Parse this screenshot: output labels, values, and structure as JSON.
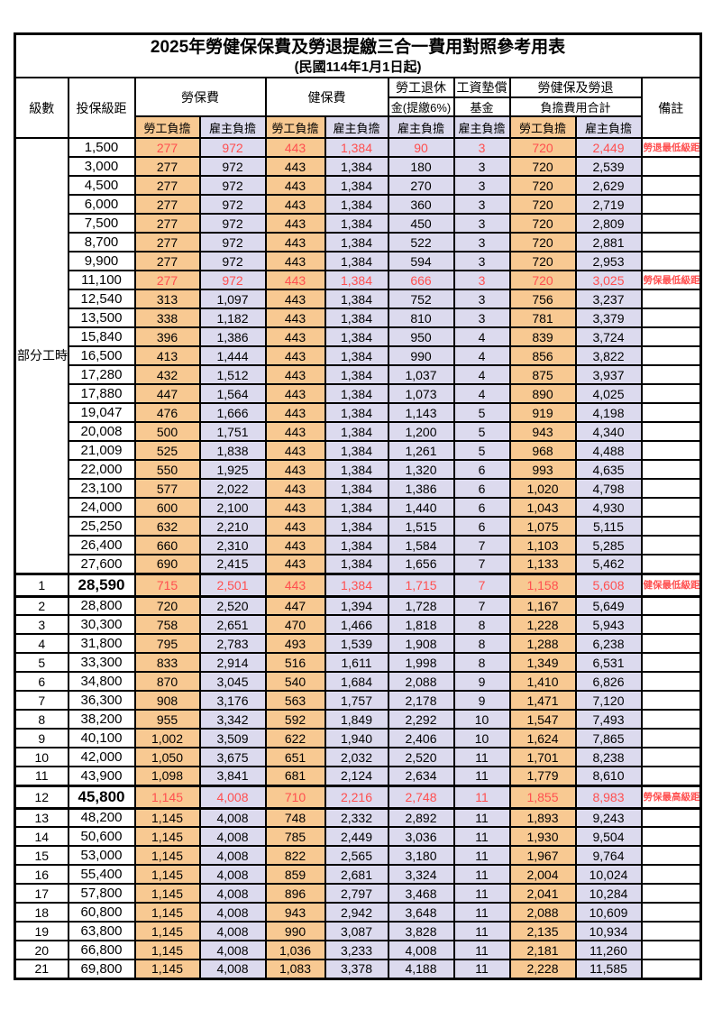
{
  "title": "2025年勞健保保費及勞退提繳三合一費用對照參考用表",
  "subtitle": "(民國114年1月1日起)",
  "colors": {
    "employee_bg": "#F8C992",
    "employer_bg": "#DCDAEE",
    "highlight_red": "#FF4F4F"
  },
  "header": {
    "level": "級數",
    "bracket": "投保級距",
    "labor_fee": "勞保費",
    "health_fee": "健保費",
    "pension_line1": "勞工退休",
    "pension_line2": "金(提繳6%)",
    "wage_fund_line1": "工資墊償",
    "wage_fund_line2": "基金",
    "total_line1": "勞健保及勞退",
    "total_line2": "負擔費用合計",
    "remark": "備註",
    "employee_share": "勞工負擔",
    "employer_share": "雇主負擔"
  },
  "part_time": {
    "label": "部分工時",
    "span": 23
  },
  "rows": [
    {
      "level": null,
      "bracket": "1,500",
      "values": [
        "277",
        "972",
        "443",
        "1,384",
        "90",
        "3",
        "720",
        "2,449"
      ],
      "note": "勞退最低級距",
      "red": true,
      "thick": false
    },
    {
      "level": null,
      "bracket": "3,000",
      "values": [
        "277",
        "972",
        "443",
        "1,384",
        "180",
        "3",
        "720",
        "2,539"
      ],
      "note": "",
      "red": false,
      "thick": false
    },
    {
      "level": null,
      "bracket": "4,500",
      "values": [
        "277",
        "972",
        "443",
        "1,384",
        "270",
        "3",
        "720",
        "2,629"
      ],
      "note": "",
      "red": false,
      "thick": false
    },
    {
      "level": null,
      "bracket": "6,000",
      "values": [
        "277",
        "972",
        "443",
        "1,384",
        "360",
        "3",
        "720",
        "2,719"
      ],
      "note": "",
      "red": false,
      "thick": false
    },
    {
      "level": null,
      "bracket": "7,500",
      "values": [
        "277",
        "972",
        "443",
        "1,384",
        "450",
        "3",
        "720",
        "2,809"
      ],
      "note": "",
      "red": false,
      "thick": false
    },
    {
      "level": null,
      "bracket": "8,700",
      "values": [
        "277",
        "972",
        "443",
        "1,384",
        "522",
        "3",
        "720",
        "2,881"
      ],
      "note": "",
      "red": false,
      "thick": false
    },
    {
      "level": null,
      "bracket": "9,900",
      "values": [
        "277",
        "972",
        "443",
        "1,384",
        "594",
        "3",
        "720",
        "2,953"
      ],
      "note": "",
      "red": false,
      "thick": false
    },
    {
      "level": null,
      "bracket": "11,100",
      "values": [
        "277",
        "972",
        "443",
        "1,384",
        "666",
        "3",
        "720",
        "3,025"
      ],
      "note": "勞保最低級距",
      "red": true,
      "thick": false
    },
    {
      "level": null,
      "bracket": "12,540",
      "values": [
        "313",
        "1,097",
        "443",
        "1,384",
        "752",
        "3",
        "756",
        "3,237"
      ],
      "note": "",
      "red": false,
      "thick": false
    },
    {
      "level": null,
      "bracket": "13,500",
      "values": [
        "338",
        "1,182",
        "443",
        "1,384",
        "810",
        "3",
        "781",
        "3,379"
      ],
      "note": "",
      "red": false,
      "thick": false
    },
    {
      "level": null,
      "bracket": "15,840",
      "values": [
        "396",
        "1,386",
        "443",
        "1,384",
        "950",
        "4",
        "839",
        "3,724"
      ],
      "note": "",
      "red": false,
      "thick": false
    },
    {
      "level": null,
      "bracket": "16,500",
      "values": [
        "413",
        "1,444",
        "443",
        "1,384",
        "990",
        "4",
        "856",
        "3,822"
      ],
      "note": "",
      "red": false,
      "thick": false
    },
    {
      "level": null,
      "bracket": "17,280",
      "values": [
        "432",
        "1,512",
        "443",
        "1,384",
        "1,037",
        "4",
        "875",
        "3,937"
      ],
      "note": "",
      "red": false,
      "thick": false
    },
    {
      "level": null,
      "bracket": "17,880",
      "values": [
        "447",
        "1,564",
        "443",
        "1,384",
        "1,073",
        "4",
        "890",
        "4,025"
      ],
      "note": "",
      "red": false,
      "thick": false
    },
    {
      "level": null,
      "bracket": "19,047",
      "values": [
        "476",
        "1,666",
        "443",
        "1,384",
        "1,143",
        "5",
        "919",
        "4,198"
      ],
      "note": "",
      "red": false,
      "thick": false
    },
    {
      "level": null,
      "bracket": "20,008",
      "values": [
        "500",
        "1,751",
        "443",
        "1,384",
        "1,200",
        "5",
        "943",
        "4,340"
      ],
      "note": "",
      "red": false,
      "thick": false
    },
    {
      "level": null,
      "bracket": "21,009",
      "values": [
        "525",
        "1,838",
        "443",
        "1,384",
        "1,261",
        "5",
        "968",
        "4,488"
      ],
      "note": "",
      "red": false,
      "thick": false
    },
    {
      "level": null,
      "bracket": "22,000",
      "values": [
        "550",
        "1,925",
        "443",
        "1,384",
        "1,320",
        "6",
        "993",
        "4,635"
      ],
      "note": "",
      "red": false,
      "thick": false
    },
    {
      "level": null,
      "bracket": "23,100",
      "values": [
        "577",
        "2,022",
        "443",
        "1,384",
        "1,386",
        "6",
        "1,020",
        "4,798"
      ],
      "note": "",
      "red": false,
      "thick": false
    },
    {
      "level": null,
      "bracket": "24,000",
      "values": [
        "600",
        "2,100",
        "443",
        "1,384",
        "1,440",
        "6",
        "1,043",
        "4,930"
      ],
      "note": "",
      "red": false,
      "thick": false
    },
    {
      "level": null,
      "bracket": "25,250",
      "values": [
        "632",
        "2,210",
        "443",
        "1,384",
        "1,515",
        "6",
        "1,075",
        "5,115"
      ],
      "note": "",
      "red": false,
      "thick": false
    },
    {
      "level": null,
      "bracket": "26,400",
      "values": [
        "660",
        "2,310",
        "443",
        "1,384",
        "1,584",
        "7",
        "1,103",
        "5,285"
      ],
      "note": "",
      "red": false,
      "thick": false
    },
    {
      "level": null,
      "bracket": "27,600",
      "values": [
        "690",
        "2,415",
        "443",
        "1,384",
        "1,656",
        "7",
        "1,133",
        "5,462"
      ],
      "note": "",
      "red": false,
      "thick": false
    },
    {
      "level": "1",
      "bracket": "28,590",
      "values": [
        "715",
        "2,501",
        "443",
        "1,384",
        "1,715",
        "7",
        "1,158",
        "5,608"
      ],
      "note": "健保最低級距",
      "red": true,
      "thick": true
    },
    {
      "level": "2",
      "bracket": "28,800",
      "values": [
        "720",
        "2,520",
        "447",
        "1,394",
        "1,728",
        "7",
        "1,167",
        "5,649"
      ],
      "note": "",
      "red": false,
      "thick": false
    },
    {
      "level": "3",
      "bracket": "30,300",
      "values": [
        "758",
        "2,651",
        "470",
        "1,466",
        "1,818",
        "8",
        "1,228",
        "5,943"
      ],
      "note": "",
      "red": false,
      "thick": false
    },
    {
      "level": "4",
      "bracket": "31,800",
      "values": [
        "795",
        "2,783",
        "493",
        "1,539",
        "1,908",
        "8",
        "1,288",
        "6,238"
      ],
      "note": "",
      "red": false,
      "thick": false
    },
    {
      "level": "5",
      "bracket": "33,300",
      "values": [
        "833",
        "2,914",
        "516",
        "1,611",
        "1,998",
        "8",
        "1,349",
        "6,531"
      ],
      "note": "",
      "red": false,
      "thick": false
    },
    {
      "level": "6",
      "bracket": "34,800",
      "values": [
        "870",
        "3,045",
        "540",
        "1,684",
        "2,088",
        "9",
        "1,410",
        "6,826"
      ],
      "note": "",
      "red": false,
      "thick": false
    },
    {
      "level": "7",
      "bracket": "36,300",
      "values": [
        "908",
        "3,176",
        "563",
        "1,757",
        "2,178",
        "9",
        "1,471",
        "7,120"
      ],
      "note": "",
      "red": false,
      "thick": false
    },
    {
      "level": "8",
      "bracket": "38,200",
      "values": [
        "955",
        "3,342",
        "592",
        "1,849",
        "2,292",
        "10",
        "1,547",
        "7,493"
      ],
      "note": "",
      "red": false,
      "thick": false
    },
    {
      "level": "9",
      "bracket": "40,100",
      "values": [
        "1,002",
        "3,509",
        "622",
        "1,940",
        "2,406",
        "10",
        "1,624",
        "7,865"
      ],
      "note": "",
      "red": false,
      "thick": false
    },
    {
      "level": "10",
      "bracket": "42,000",
      "values": [
        "1,050",
        "3,675",
        "651",
        "2,032",
        "2,520",
        "11",
        "1,701",
        "8,238"
      ],
      "note": "",
      "red": false,
      "thick": false
    },
    {
      "level": "11",
      "bracket": "43,900",
      "values": [
        "1,098",
        "3,841",
        "681",
        "2,124",
        "2,634",
        "11",
        "1,779",
        "8,610"
      ],
      "note": "",
      "red": false,
      "thick": false
    },
    {
      "level": "12",
      "bracket": "45,800",
      "values": [
        "1,145",
        "4,008",
        "710",
        "2,216",
        "2,748",
        "11",
        "1,855",
        "8,983"
      ],
      "note": "勞保最高級距",
      "red": true,
      "thick": true
    },
    {
      "level": "13",
      "bracket": "48,200",
      "values": [
        "1,145",
        "4,008",
        "748",
        "2,332",
        "2,892",
        "11",
        "1,893",
        "9,243"
      ],
      "note": "",
      "red": false,
      "thick": false
    },
    {
      "level": "14",
      "bracket": "50,600",
      "values": [
        "1,145",
        "4,008",
        "785",
        "2,449",
        "3,036",
        "11",
        "1,930",
        "9,504"
      ],
      "note": "",
      "red": false,
      "thick": false
    },
    {
      "level": "15",
      "bracket": "53,000",
      "values": [
        "1,145",
        "4,008",
        "822",
        "2,565",
        "3,180",
        "11",
        "1,967",
        "9,764"
      ],
      "note": "",
      "red": false,
      "thick": false
    },
    {
      "level": "16",
      "bracket": "55,400",
      "values": [
        "1,145",
        "4,008",
        "859",
        "2,681",
        "3,324",
        "11",
        "2,004",
        "10,024"
      ],
      "note": "",
      "red": false,
      "thick": false
    },
    {
      "level": "17",
      "bracket": "57,800",
      "values": [
        "1,145",
        "4,008",
        "896",
        "2,797",
        "3,468",
        "11",
        "2,041",
        "10,284"
      ],
      "note": "",
      "red": false,
      "thick": false
    },
    {
      "level": "18",
      "bracket": "60,800",
      "values": [
        "1,145",
        "4,008",
        "943",
        "2,942",
        "3,648",
        "11",
        "2,088",
        "10,609"
      ],
      "note": "",
      "red": false,
      "thick": false
    },
    {
      "level": "19",
      "bracket": "63,800",
      "values": [
        "1,145",
        "4,008",
        "990",
        "3,087",
        "3,828",
        "11",
        "2,135",
        "10,934"
      ],
      "note": "",
      "red": false,
      "thick": false
    },
    {
      "level": "20",
      "bracket": "66,800",
      "values": [
        "1,145",
        "4,008",
        "1,036",
        "3,233",
        "4,008",
        "11",
        "2,181",
        "11,260"
      ],
      "note": "",
      "red": false,
      "thick": false
    },
    {
      "level": "21",
      "bracket": "69,800",
      "values": [
        "1,145",
        "4,008",
        "1,083",
        "3,378",
        "4,188",
        "11",
        "2,228",
        "11,585"
      ],
      "note": "",
      "red": false,
      "thick": false
    }
  ],
  "value_column_pattern": [
    "emp",
    "er",
    "emp",
    "er",
    "er",
    "er",
    "emp",
    "er"
  ]
}
